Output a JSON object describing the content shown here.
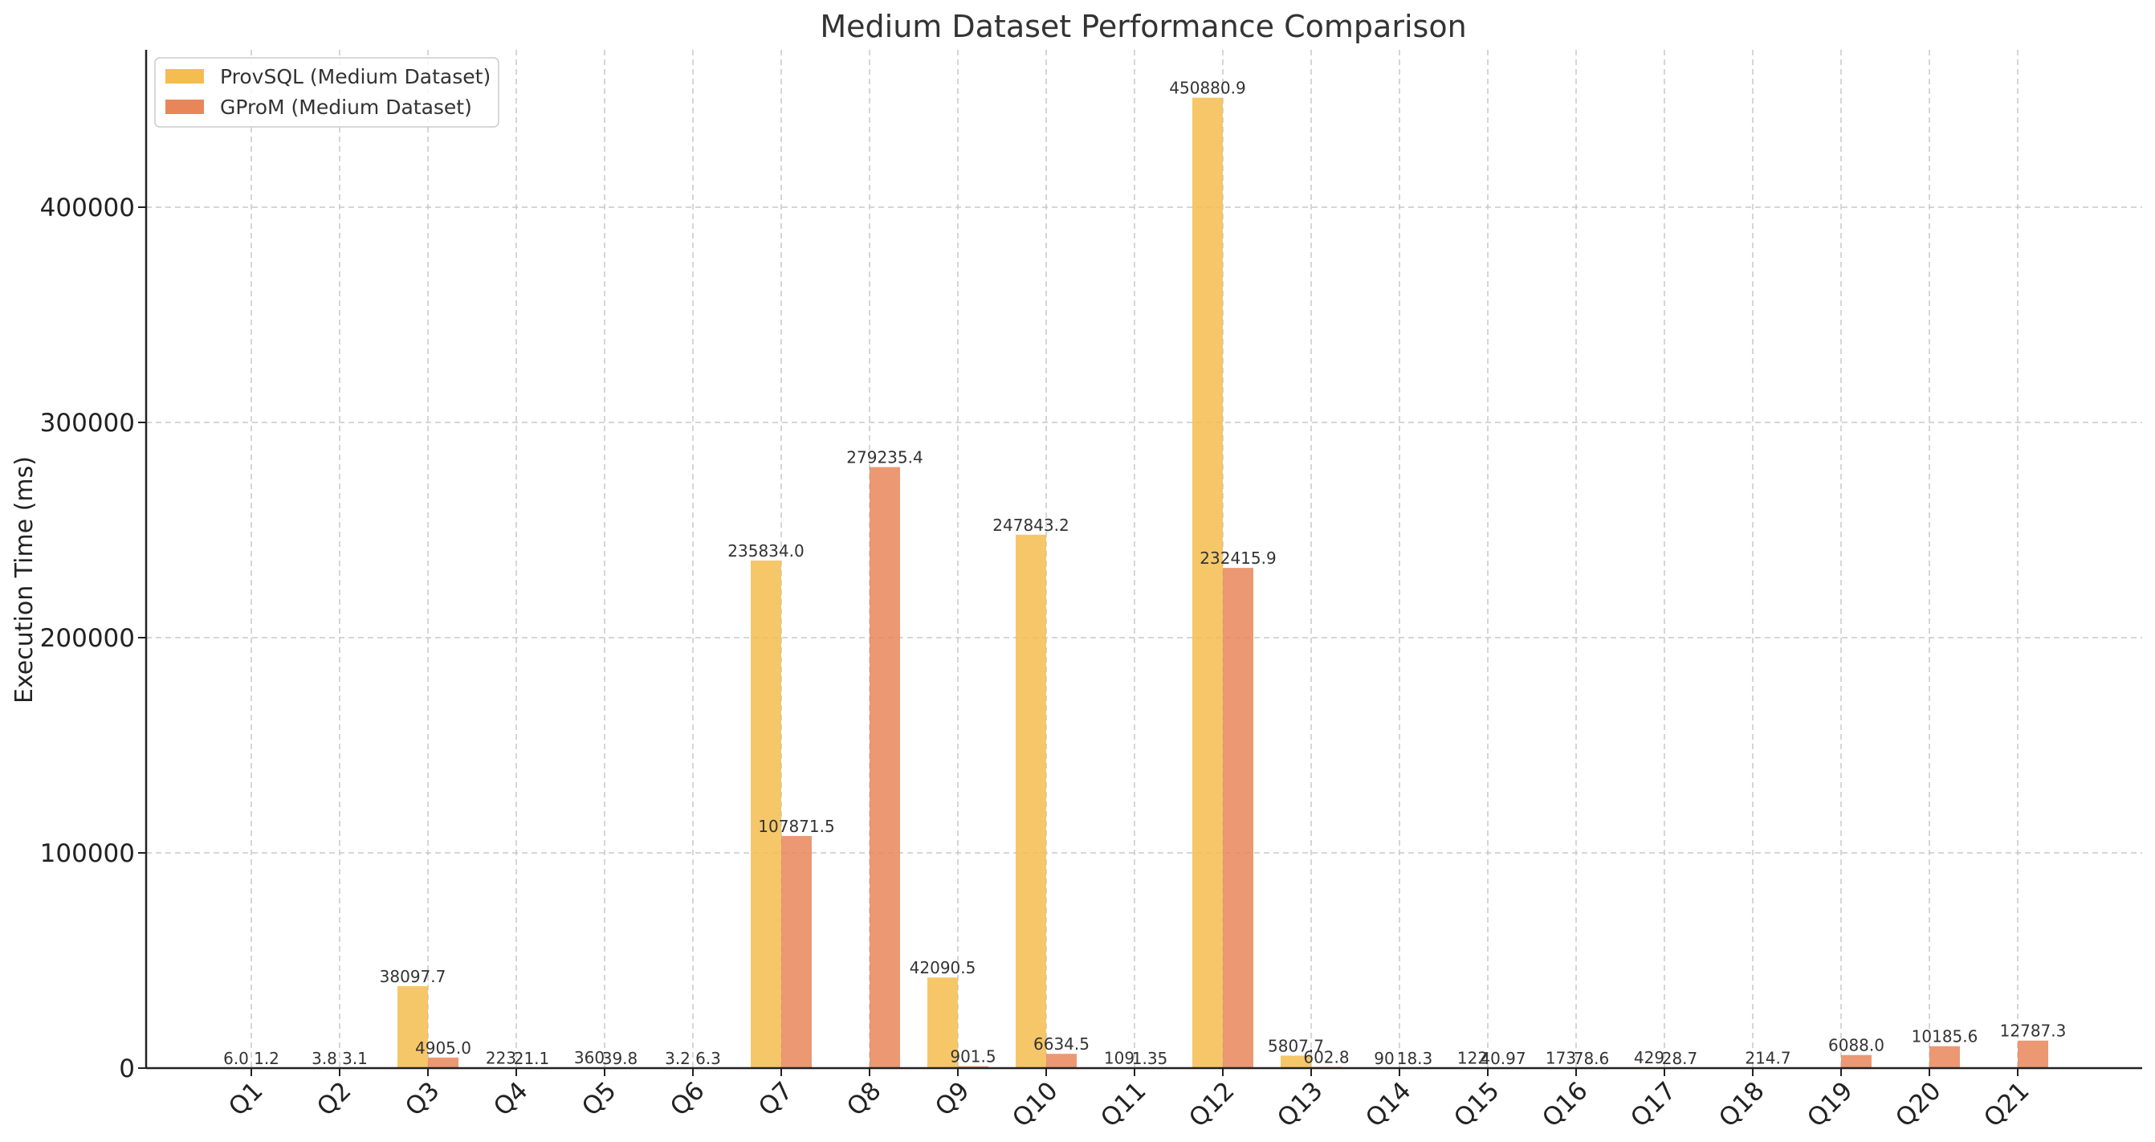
{
  "chart_data": {
    "type": "bar",
    "title": "Medium Dataset Performance Comparison",
    "xlabel": "",
    "ylabel": "Execution Time (ms)",
    "ylim": [
      0,
      475000
    ],
    "yticks": [
      0,
      100000,
      200000,
      300000,
      400000
    ],
    "ytick_labels": [
      "0",
      "100000",
      "200000",
      "300000",
      "400000"
    ],
    "grid": true,
    "legend_position": "top-left",
    "categories": [
      "Q1",
      "Q2",
      "Q3",
      "Q4",
      "Q5",
      "Q6",
      "Q7",
      "Q8",
      "Q9",
      "Q10",
      "Q11",
      "Q12",
      "Q13",
      "Q14",
      "Q15",
      "Q16",
      "Q17",
      "Q18",
      "Q19",
      "Q20",
      "Q21"
    ],
    "series": [
      {
        "name": "ProvSQL (Medium Dataset)",
        "color": "#f5bd4f",
        "values": [
          6.0,
          3.8,
          38097.7,
          223.0,
          360.0,
          3.2,
          235834.0,
          0,
          42090.5,
          247843.2,
          109.0,
          450880.9,
          5807.7,
          90.0,
          122.0,
          173.0,
          429.0,
          0,
          0,
          0,
          0
        ],
        "labels": [
          "6.0",
          "3.8",
          "38097.7",
          "223",
          "360",
          "3.2",
          "235834.0",
          "",
          "42090.5",
          "247843.2",
          "109",
          "450880.9",
          "5807.7",
          "90",
          "122",
          "173",
          "429",
          "",
          "",
          "",
          ""
        ]
      },
      {
        "name": "GProM (Medium Dataset)",
        "color": "#e8865a",
        "values": [
          1.2,
          3.1,
          4905.0,
          21.1,
          39.8,
          6.3,
          107871.5,
          279235.4,
          901.5,
          6634.5,
          1.35,
          232415.9,
          602.8,
          18.3,
          40.97,
          78.6,
          28.7,
          214.7,
          6088.0,
          10185.6,
          12787.3
        ],
        "labels": [
          "1.2",
          "3.1",
          "4905.0",
          "21.1",
          "39.8",
          "6.3",
          "107871.5",
          "279235.4",
          "901.5",
          "6634.5",
          "1.35",
          "232415.9",
          "602.8",
          "18.3",
          "40.97",
          "78.6",
          "28.7",
          "214.7",
          "6088.0",
          "10185.6",
          "12787.3"
        ]
      }
    ]
  }
}
